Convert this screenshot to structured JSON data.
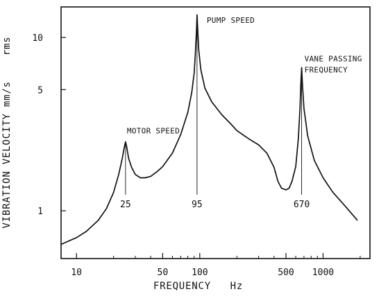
{
  "chart_data": {
    "type": "line",
    "title": "",
    "xlabel": "FREQUENCY   Hz",
    "ylabel": "VIBRATION VELOCITY mm/s    rms",
    "x_scale": "log",
    "y_scale": "log",
    "xlim": [
      7.5,
      2400
    ],
    "ylim": [
      0.53,
      15
    ],
    "grid": false,
    "x_ticks": [
      10,
      50,
      100,
      500,
      1000
    ],
    "y_ticks": [
      1,
      5,
      10
    ],
    "x_minor_ticks": [
      20,
      30,
      40,
      60,
      70,
      80,
      90,
      200,
      300,
      400,
      600,
      700,
      800,
      900,
      2000
    ],
    "colors": {
      "line": "#111111",
      "axes": "#111111"
    },
    "series": [
      {
        "name": "",
        "x": [
          7.5,
          10,
          12,
          15,
          17.5,
          20,
          22,
          23.5,
          24.5,
          25,
          25.5,
          26.5,
          28,
          30,
          33,
          36,
          40,
          45,
          50,
          60,
          70,
          80,
          86,
          90,
          92,
          94,
          95,
          96,
          98,
          102,
          110,
          125,
          150,
          180,
          200,
          250,
          300,
          350,
          400,
          430,
          460,
          500,
          530,
          560,
          600,
          630,
          650,
          660,
          670,
          680,
          700,
          750,
          850,
          1000,
          1200,
          1500,
          1900
        ],
        "y": [
          0.64,
          0.7,
          0.76,
          0.88,
          1.03,
          1.28,
          1.62,
          2.0,
          2.35,
          2.5,
          2.35,
          2.0,
          1.78,
          1.62,
          1.55,
          1.55,
          1.58,
          1.68,
          1.8,
          2.15,
          2.75,
          3.7,
          4.8,
          6.2,
          8.0,
          11.0,
          13.5,
          11.5,
          8.5,
          6.5,
          5.1,
          4.25,
          3.6,
          3.15,
          2.9,
          2.6,
          2.4,
          2.15,
          1.78,
          1.48,
          1.35,
          1.32,
          1.35,
          1.48,
          1.8,
          2.6,
          3.9,
          5.4,
          6.7,
          5.4,
          3.9,
          2.7,
          1.95,
          1.55,
          1.28,
          1.07,
          0.88
        ]
      }
    ],
    "annotations": [
      {
        "text": "MOTOR SPEED",
        "x": 25,
        "y": 2.5
      },
      {
        "text": "PUMP SPEED",
        "x": 95,
        "y": 13.5
      },
      {
        "text": "VANE PASSING",
        "x": 670,
        "y": 6.7
      },
      {
        "text": "FREQUENCY",
        "x": 670,
        "y": 6.7
      }
    ],
    "marker_labels": [
      {
        "text": "25",
        "x": 25
      },
      {
        "text": "95",
        "x": 95
      },
      {
        "text": "670",
        "x": 670
      }
    ]
  }
}
